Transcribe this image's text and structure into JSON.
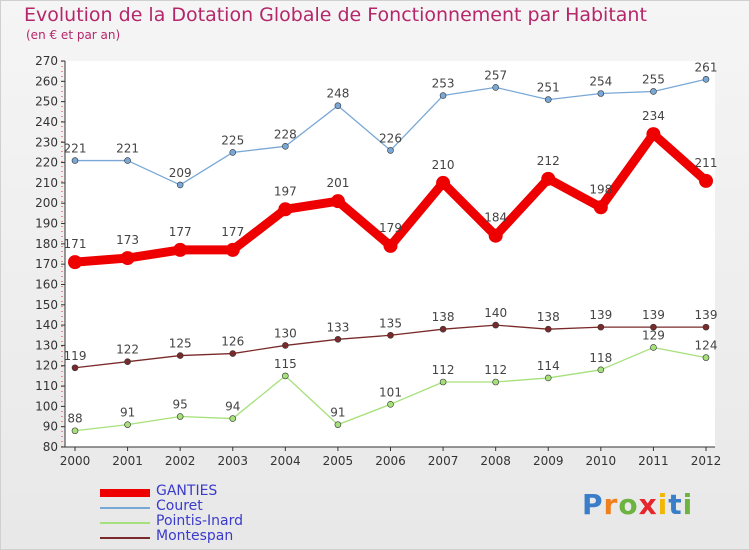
{
  "title": "Evolution de la Dotation Globale de Fonctionnement par Habitant",
  "subtitle": "(en € et par an)",
  "brand": {
    "text": "Proxiti",
    "colors": [
      "#3a7dc9",
      "#f07f1e",
      "#6db33f",
      "#e6262d",
      "#f2b705",
      "#3a7dc9",
      "#6db33f"
    ]
  },
  "chart_data": {
    "type": "line",
    "x": [
      "2000",
      "2001",
      "2002",
      "2003",
      "2004",
      "2005",
      "2006",
      "2007",
      "2008",
      "2009",
      "2010",
      "2011",
      "2012"
    ],
    "ylim": [
      80,
      270
    ],
    "yticks": [
      80,
      90,
      100,
      110,
      120,
      130,
      140,
      150,
      160,
      170,
      180,
      190,
      200,
      210,
      220,
      230,
      240,
      250,
      260,
      270
    ],
    "grid": false,
    "legend_position": "bottom-left",
    "series": [
      {
        "name": "GANTIES",
        "color": "#ee0000",
        "width": 9,
        "radius": 7,
        "values": [
          171,
          173,
          177,
          177,
          197,
          201,
          179,
          210,
          184,
          212,
          198,
          234,
          211
        ],
        "labels": [
          "171",
          "173",
          "177",
          "177",
          "197",
          "201",
          "179",
          "210",
          "184",
          "212",
          "198",
          "234",
          "211"
        ]
      },
      {
        "name": "Couret",
        "color": "#7aa8d6",
        "width": 1.3,
        "radius": 3,
        "values": [
          221,
          221,
          209,
          225,
          228,
          248,
          226,
          253,
          257,
          251,
          254,
          255,
          261
        ],
        "labels": [
          "221",
          "221",
          "209",
          "225",
          "228",
          "248",
          "226",
          "253",
          "257",
          "251",
          "254",
          "255",
          "261"
        ]
      },
      {
        "name": "Pointis-Inard",
        "color": "#a6e07a",
        "width": 1.3,
        "radius": 3,
        "values": [
          88,
          91,
          95,
          94,
          115,
          91,
          101,
          112,
          112,
          114,
          118,
          129,
          124
        ],
        "labels": [
          "88",
          "91",
          "95",
          "94",
          "115",
          "91",
          "101",
          "112",
          "112",
          "114",
          "118",
          "129",
          "124"
        ]
      },
      {
        "name": "Montespan",
        "color": "#7a2a2a",
        "width": 1.3,
        "radius": 3,
        "values": [
          119,
          122,
          125,
          126,
          130,
          133,
          135,
          138,
          140,
          138,
          139,
          139,
          139
        ],
        "labels": [
          "119",
          "122",
          "125",
          "126",
          "130",
          "133",
          "135",
          "138",
          "140",
          "138",
          "139",
          "139",
          "139"
        ]
      }
    ]
  }
}
